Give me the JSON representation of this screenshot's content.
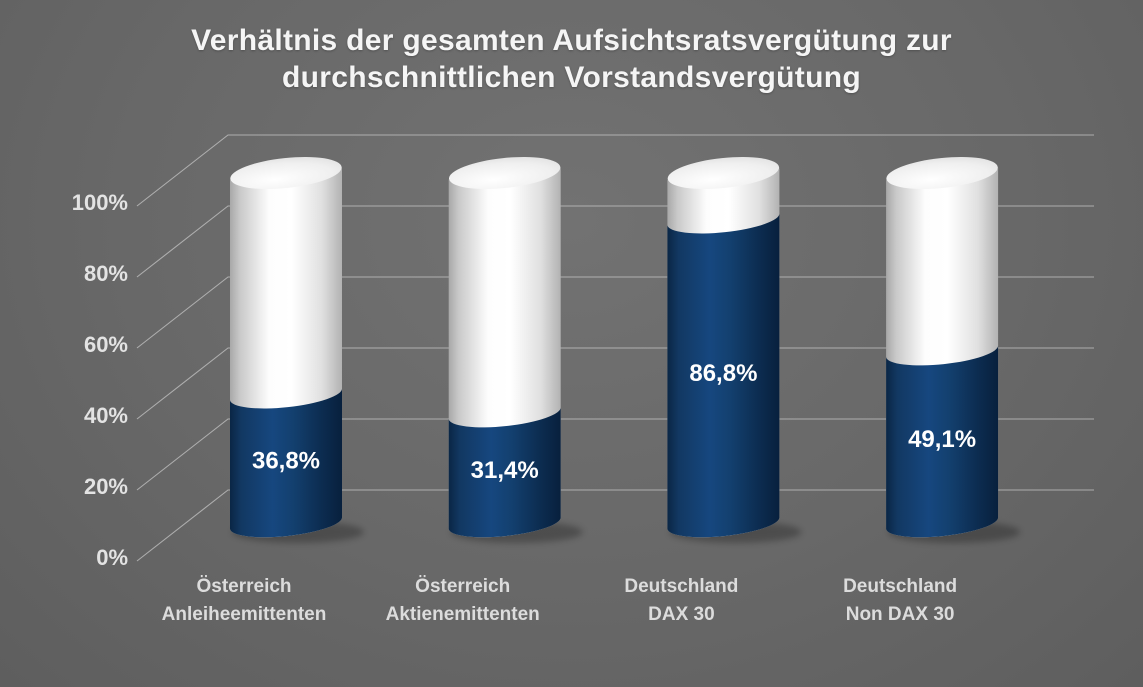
{
  "title": {
    "lines": [
      "Verhältnis der gesamten Aufsichtsratsvergütung zur",
      "durchschnittlichen Vorstandsvergütung"
    ]
  },
  "chart_data": {
    "type": "bar",
    "subtype": "3d-cylinder-stacked-to-100",
    "title": "Verhältnis der gesamten Aufsichtsratsvergütung zur durchschnittlichen Vorstandsvergütung",
    "categories": [
      "Österreich Anleiheemittenten",
      "Österreich Aktienemittenten",
      "Deutschland DAX 30",
      "Deutschland Non DAX 30"
    ],
    "categories_lines": [
      [
        "Österreich",
        "Anleiheemittenten"
      ],
      [
        "Österreich",
        "Aktienemittenten"
      ],
      [
        "Deutschland",
        "DAX 30"
      ],
      [
        "Deutschland",
        "Non DAX 30"
      ]
    ],
    "values": [
      36.8,
      31.4,
      86.8,
      49.1
    ],
    "value_labels": [
      "36,8%",
      "31,4%",
      "86,8%",
      "49,1%"
    ],
    "remainder_fill_to": 100,
    "yticks": [
      "0%",
      "20%",
      "40%",
      "60%",
      "80%",
      "100%"
    ],
    "ytick_values": [
      0,
      20,
      40,
      60,
      80,
      100
    ],
    "ylim": [
      0,
      100
    ],
    "grid": true,
    "legend": false,
    "xlabel": "",
    "ylabel": "",
    "colors": {
      "filled": "#13406f",
      "remainder": "#f4f4f4",
      "background": "#686868",
      "gridline": "#c9c9c9",
      "value_label": "#ffffff",
      "axis_label": "#e3e3e3",
      "category_label": "#dcdcdc",
      "title": "#f5f5f5"
    }
  }
}
